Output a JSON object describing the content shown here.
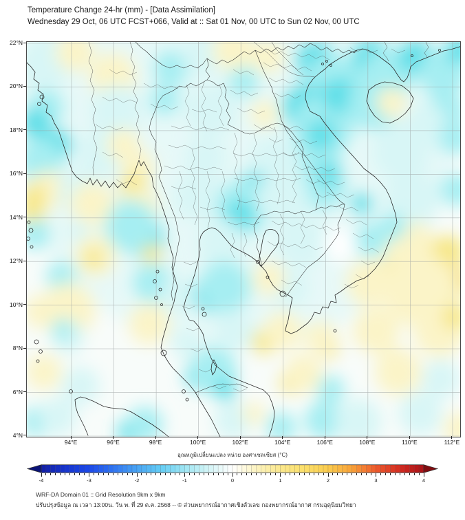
{
  "header": {
    "title": "Temperature Change 24-hr (mm) - [Data Assimilation]",
    "subtitle": "Wednesday 29 Oct, 06 UTC FCST+066, Valid at :: Sat 01 Nov, 00 UTC to Sun 02 Nov, 00 UTC"
  },
  "map": {
    "x_tick_labels": [
      "94°E",
      "96°E",
      "98°E",
      "100°E",
      "102°E",
      "104°E",
      "106°E",
      "108°E",
      "110°E",
      "112°E"
    ],
    "y_tick_labels": [
      "22°N",
      "20°N",
      "18°N",
      "16°N",
      "14°N",
      "12°N",
      "10°N",
      "8°N",
      "6°N",
      "4°N"
    ]
  },
  "colorbar": {
    "label": "อุณหภูมิเปลี่ยนแปลง หน่วย องศาเซลเซียส (°C)",
    "tick_labels": [
      "-4",
      "-3",
      "-2",
      "-1",
      "0",
      "1",
      "2",
      "3",
      "4"
    ],
    "min": -4,
    "max": 4,
    "segment_step": 0.1,
    "stops": [
      [
        -4,
        "#111fa4"
      ],
      [
        -3.5,
        "#1634cd"
      ],
      [
        -3,
        "#1c49e9"
      ],
      [
        -2.5,
        "#2f74f2"
      ],
      [
        -2,
        "#49a4f4"
      ],
      [
        -1.5,
        "#63ccf4"
      ],
      [
        -1,
        "#9fe5f3"
      ],
      [
        -0.5,
        "#d3f4f6"
      ],
      [
        -0.05,
        "#fbfefe"
      ],
      [
        0.05,
        "#fffef8"
      ],
      [
        0.5,
        "#fcf3c0"
      ],
      [
        1,
        "#fbe88e"
      ],
      [
        1.5,
        "#fbdf6a"
      ],
      [
        2,
        "#fbcc4e"
      ],
      [
        2.5,
        "#f9a238"
      ],
      [
        3,
        "#ee5a2d"
      ],
      [
        3.5,
        "#d32b20"
      ],
      [
        4,
        "#a91217"
      ]
    ],
    "under_color": "#0a1378",
    "over_color": "#800c10"
  },
  "footer": {
    "line1": "WRF-DA Domain 01 :: Grid Resolution 9km x 9km",
    "line2": "ปรับปรุงข้อมูล ณ เวลา 13:00น. วัน พ. ที่ 29 ต.ค. 2568 -- © ส่วนพยากรณ์อากาศเชิงตัวเลข กองพยากรณ์อากาศ กรมอุตุนิยมวิทยา"
  },
  "chart_data": {
    "type": "heatmap",
    "title": "Temperature Change 24-hr (mm) - [Data Assimilation]",
    "x_range_deg_east": [
      92,
      112.4
    ],
    "y_range_deg_north": [
      3.9,
      22.1
    ],
    "colorbar_range_c": [
      -4,
      4
    ],
    "notes": "Smooth 24-hr temperature-change field over Indochina: cyan (-0.5 to -1.5 C) over N Vietnam, Gulf of Tonkin, S China coast, Andaman coast, NE Thailand and Gulf of Thailand; pale yellow (+0.25 to +1) over NW corner, central Myanmar coast, Hainan, Cambodia coast and S latitudes; strongest warm patch (+1 to +1.5) near 111E 11N in the South China Sea."
  }
}
